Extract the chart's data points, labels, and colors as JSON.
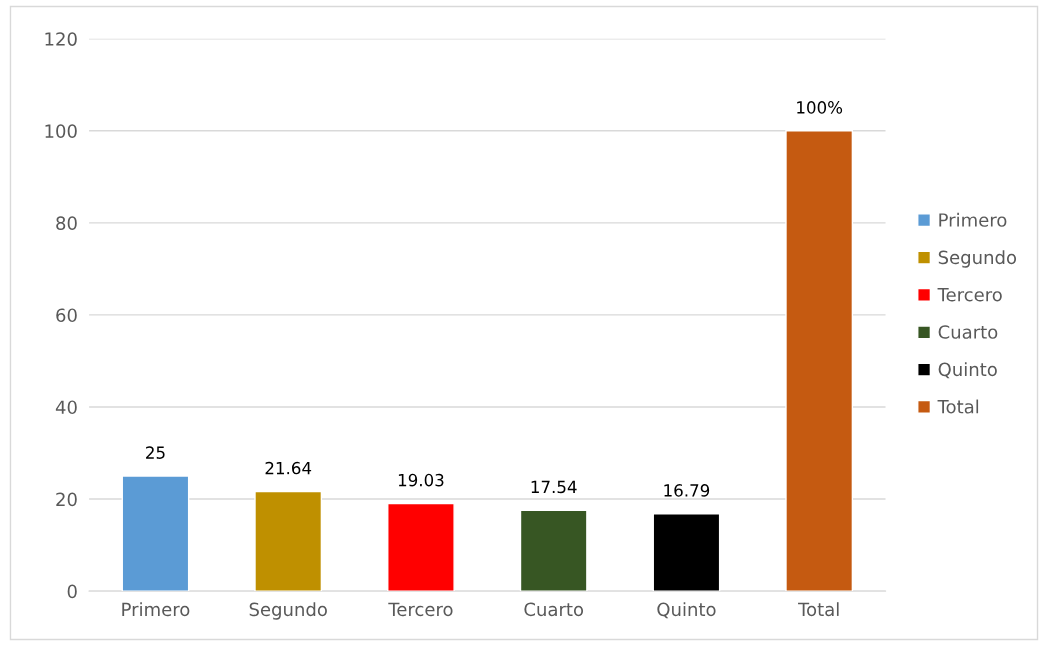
{
  "chart_data": {
    "type": "bar",
    "categories": [
      "Primero",
      "Segundo",
      "Tercero",
      "Cuarto",
      "Quinto",
      "Total"
    ],
    "series": [
      {
        "name": "Primero",
        "color": "#5b9bd5",
        "values": [
          25,
          null,
          null,
          null,
          null,
          null
        ],
        "value_labels": [
          "25",
          null,
          null,
          null,
          null,
          null
        ]
      },
      {
        "name": "Segundo",
        "color": "#bf9000",
        "values": [
          null,
          21.64,
          null,
          null,
          null,
          null
        ],
        "value_labels": [
          null,
          "21.64",
          null,
          null,
          null,
          null
        ]
      },
      {
        "name": "Tercero",
        "color": "#ff0000",
        "values": [
          null,
          null,
          19.03,
          null,
          null,
          null
        ],
        "value_labels": [
          null,
          null,
          "19.03",
          null,
          null,
          null
        ]
      },
      {
        "name": "Cuarto",
        "color": "#375623",
        "values": [
          null,
          null,
          null,
          17.54,
          null,
          null
        ],
        "value_labels": [
          null,
          null,
          null,
          "17.54",
          null,
          null
        ]
      },
      {
        "name": "Quinto",
        "color": "#000000",
        "values": [
          null,
          null,
          null,
          null,
          16.79,
          null
        ],
        "value_labels": [
          null,
          null,
          null,
          null,
          "16.79",
          null
        ]
      },
      {
        "name": "Total",
        "color": "#c55a11",
        "values": [
          null,
          null,
          null,
          null,
          null,
          100
        ],
        "value_labels": [
          null,
          null,
          null,
          null,
          null,
          "100%"
        ]
      }
    ],
    "ylim": [
      0,
      120
    ],
    "yticks": [
      0,
      20,
      40,
      60,
      80,
      100,
      120
    ],
    "grid": "y",
    "legend": "right"
  }
}
